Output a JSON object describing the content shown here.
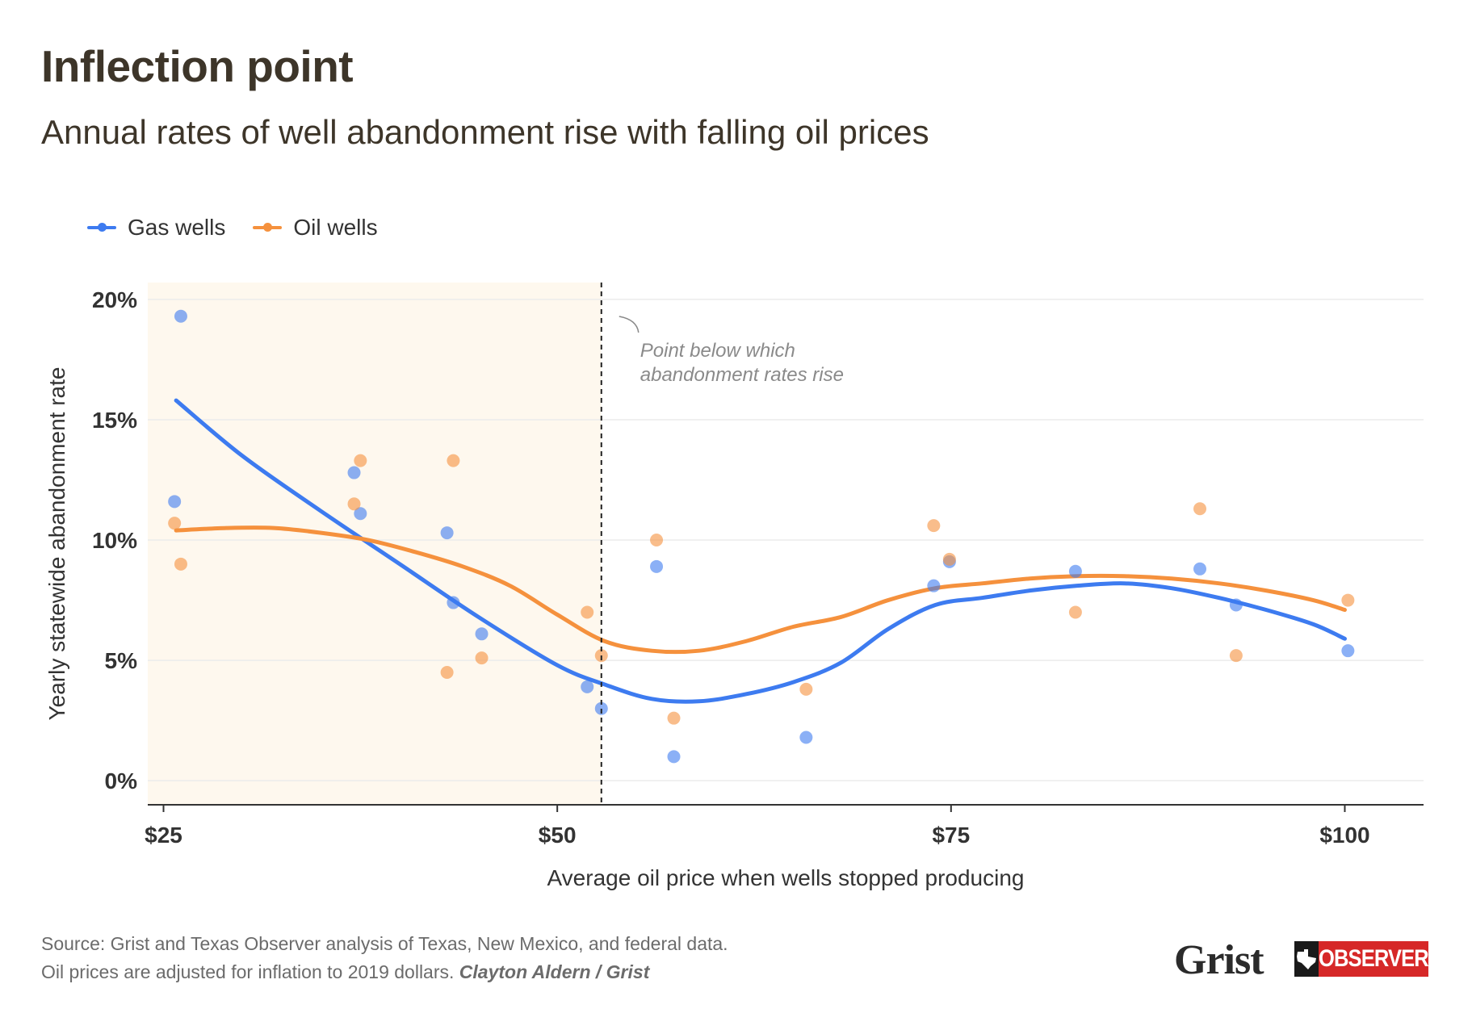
{
  "header": {
    "title": "Inflection point",
    "subtitle": "Annual rates of well abandonment rise with falling oil prices"
  },
  "legend": [
    {
      "label": "Gas wells",
      "color": "#3d7bf0"
    },
    {
      "label": "Oil wells",
      "color": "#f5913d"
    }
  ],
  "annotation": {
    "line1": "Point below which",
    "line2": "abandonment rates rise"
  },
  "footer": {
    "source": "Source: Grist and Texas Observer analysis of Texas, New Mexico, and federal data.",
    "note": "Oil prices are adjusted for inflation to 2019 dollars.",
    "credit": "Clayton Aldern / Grist"
  },
  "logos": {
    "grist": "Grist",
    "observer": "OBSERVER"
  },
  "chart_data": {
    "type": "scatter",
    "xlabel": "Average oil price when wells stopped producing",
    "ylabel": "Yearly statewide abandonment rate",
    "xlim": [
      24,
      105
    ],
    "ylim": [
      -1,
      20.7
    ],
    "x_ticks": [
      25,
      50,
      75,
      100
    ],
    "x_tick_labels": [
      "$25",
      "$50",
      "$75",
      "$100"
    ],
    "y_ticks": [
      0,
      5,
      10,
      15,
      20
    ],
    "y_tick_labels": [
      "0%",
      "5%",
      "10%",
      "15%",
      "20%"
    ],
    "grid": true,
    "legend_position": "top-left",
    "shaded_region": {
      "x_from": 24,
      "x_to": 52.8,
      "color": "#fef8ee"
    },
    "threshold_x": 52.8,
    "series": [
      {
        "name": "Gas wells",
        "color": "#3d7bf0",
        "points": [
          [
            25.7,
            11.6
          ],
          [
            26.1,
            19.3
          ],
          [
            37.1,
            12.8
          ],
          [
            37.5,
            11.1
          ],
          [
            43.0,
            10.3
          ],
          [
            43.4,
            7.4
          ],
          [
            45.2,
            6.1
          ],
          [
            51.9,
            3.9
          ],
          [
            52.8,
            3.0
          ],
          [
            56.3,
            8.9
          ],
          [
            57.4,
            1.0
          ],
          [
            65.8,
            1.8
          ],
          [
            73.9,
            8.1
          ],
          [
            74.9,
            9.1
          ],
          [
            82.9,
            8.7
          ],
          [
            90.8,
            8.8
          ],
          [
            93.1,
            7.3
          ],
          [
            100.2,
            5.4
          ]
        ],
        "trend": [
          [
            25.8,
            15.8
          ],
          [
            30,
            13.5
          ],
          [
            35,
            11.2
          ],
          [
            40,
            9.0
          ],
          [
            45,
            6.8
          ],
          [
            50,
            4.8
          ],
          [
            53,
            4.0
          ],
          [
            56,
            3.4
          ],
          [
            59,
            3.3
          ],
          [
            62,
            3.6
          ],
          [
            65,
            4.1
          ],
          [
            68,
            4.9
          ],
          [
            71,
            6.3
          ],
          [
            74,
            7.3
          ],
          [
            77,
            7.6
          ],
          [
            80,
            7.9
          ],
          [
            83,
            8.1
          ],
          [
            86,
            8.2
          ],
          [
            89,
            8.0
          ],
          [
            92,
            7.6
          ],
          [
            95,
            7.1
          ],
          [
            98,
            6.5
          ],
          [
            100,
            5.9
          ]
        ]
      },
      {
        "name": "Oil wells",
        "color": "#f5913d",
        "points": [
          [
            25.7,
            10.7
          ],
          [
            26.1,
            9.0
          ],
          [
            37.1,
            11.5
          ],
          [
            37.5,
            13.3
          ],
          [
            43.0,
            4.5
          ],
          [
            43.4,
            13.3
          ],
          [
            45.2,
            5.1
          ],
          [
            51.9,
            7.0
          ],
          [
            52.8,
            5.2
          ],
          [
            56.3,
            10.0
          ],
          [
            57.4,
            2.6
          ],
          [
            65.8,
            3.8
          ],
          [
            73.9,
            10.6
          ],
          [
            74.9,
            9.2
          ],
          [
            82.9,
            7.0
          ],
          [
            90.8,
            11.3
          ],
          [
            93.1,
            5.2
          ],
          [
            100.2,
            7.5
          ]
        ],
        "trend": [
          [
            25.8,
            10.4
          ],
          [
            29,
            10.5
          ],
          [
            32,
            10.5
          ],
          [
            35,
            10.3
          ],
          [
            38,
            10.0
          ],
          [
            41,
            9.5
          ],
          [
            44,
            8.9
          ],
          [
            47,
            8.1
          ],
          [
            50,
            6.9
          ],
          [
            53,
            5.8
          ],
          [
            56,
            5.4
          ],
          [
            59,
            5.4
          ],
          [
            62,
            5.8
          ],
          [
            65,
            6.4
          ],
          [
            68,
            6.8
          ],
          [
            71,
            7.5
          ],
          [
            74,
            8.0
          ],
          [
            77,
            8.2
          ],
          [
            80,
            8.4
          ],
          [
            83,
            8.5
          ],
          [
            86,
            8.5
          ],
          [
            89,
            8.4
          ],
          [
            92,
            8.2
          ],
          [
            95,
            7.9
          ],
          [
            98,
            7.5
          ],
          [
            100,
            7.1
          ]
        ]
      }
    ]
  }
}
